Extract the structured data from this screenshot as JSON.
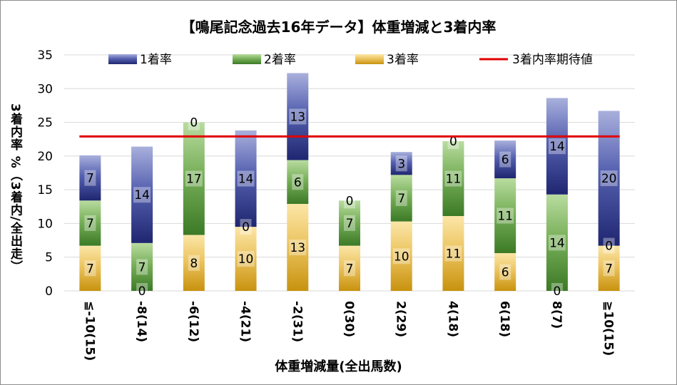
{
  "chart_data": {
    "type": "bar",
    "stacked": true,
    "title": "【鳴尾記念過去16年データ】体重増減と3着内率",
    "xlabel": "体重増減量(全出馬数)",
    "ylabel": "3着内率 %（3着内/全出走）",
    "ylim": [
      0,
      35
    ],
    "yticks": [
      "0",
      "5",
      "10",
      "15",
      "20",
      "25",
      "30",
      "35"
    ],
    "categories": [
      "≦-10(15)",
      "-8(14)",
      "-6(12)",
      "-4(21)",
      "-2(31)",
      "0(30)",
      "2(29)",
      "4(18)",
      "6(18)",
      "8(7)",
      "≧10(15)"
    ],
    "series": [
      {
        "name": "3着率",
        "color": "#d9a520",
        "values": [
          6.7,
          0,
          8.3,
          9.5,
          12.9,
          6.7,
          10.3,
          11.1,
          5.6,
          0,
          6.7
        ],
        "labels": [
          "7",
          "0",
          "8",
          "10",
          "13",
          "7",
          "10",
          "11",
          "6",
          "0",
          "7"
        ]
      },
      {
        "name": "2着率",
        "color": "#5c9a3c",
        "values": [
          6.7,
          7.1,
          16.7,
          0,
          6.5,
          6.7,
          6.9,
          11.1,
          11.1,
          14.3,
          0
        ],
        "labels": [
          "7",
          "7",
          "17",
          "0",
          "6",
          "7",
          "7",
          "11",
          "11",
          "14",
          "0"
        ]
      },
      {
        "name": "1着率",
        "color": "#2e3a8c",
        "values": [
          6.7,
          14.3,
          0,
          14.3,
          12.9,
          0,
          3.4,
          0,
          5.6,
          14.3,
          20.0
        ],
        "labels": [
          "7",
          "14",
          "0",
          "14",
          "13",
          "0",
          "3",
          "0",
          "6",
          "14",
          "20"
        ]
      }
    ],
    "reference_line": {
      "name": "3着内率期待値",
      "value": 22.9,
      "color": "#e00000"
    },
    "legend": {
      "position": "top",
      "order": [
        "1着率",
        "2着率",
        "3着率",
        "3着内率期待値"
      ]
    },
    "grid": true
  }
}
